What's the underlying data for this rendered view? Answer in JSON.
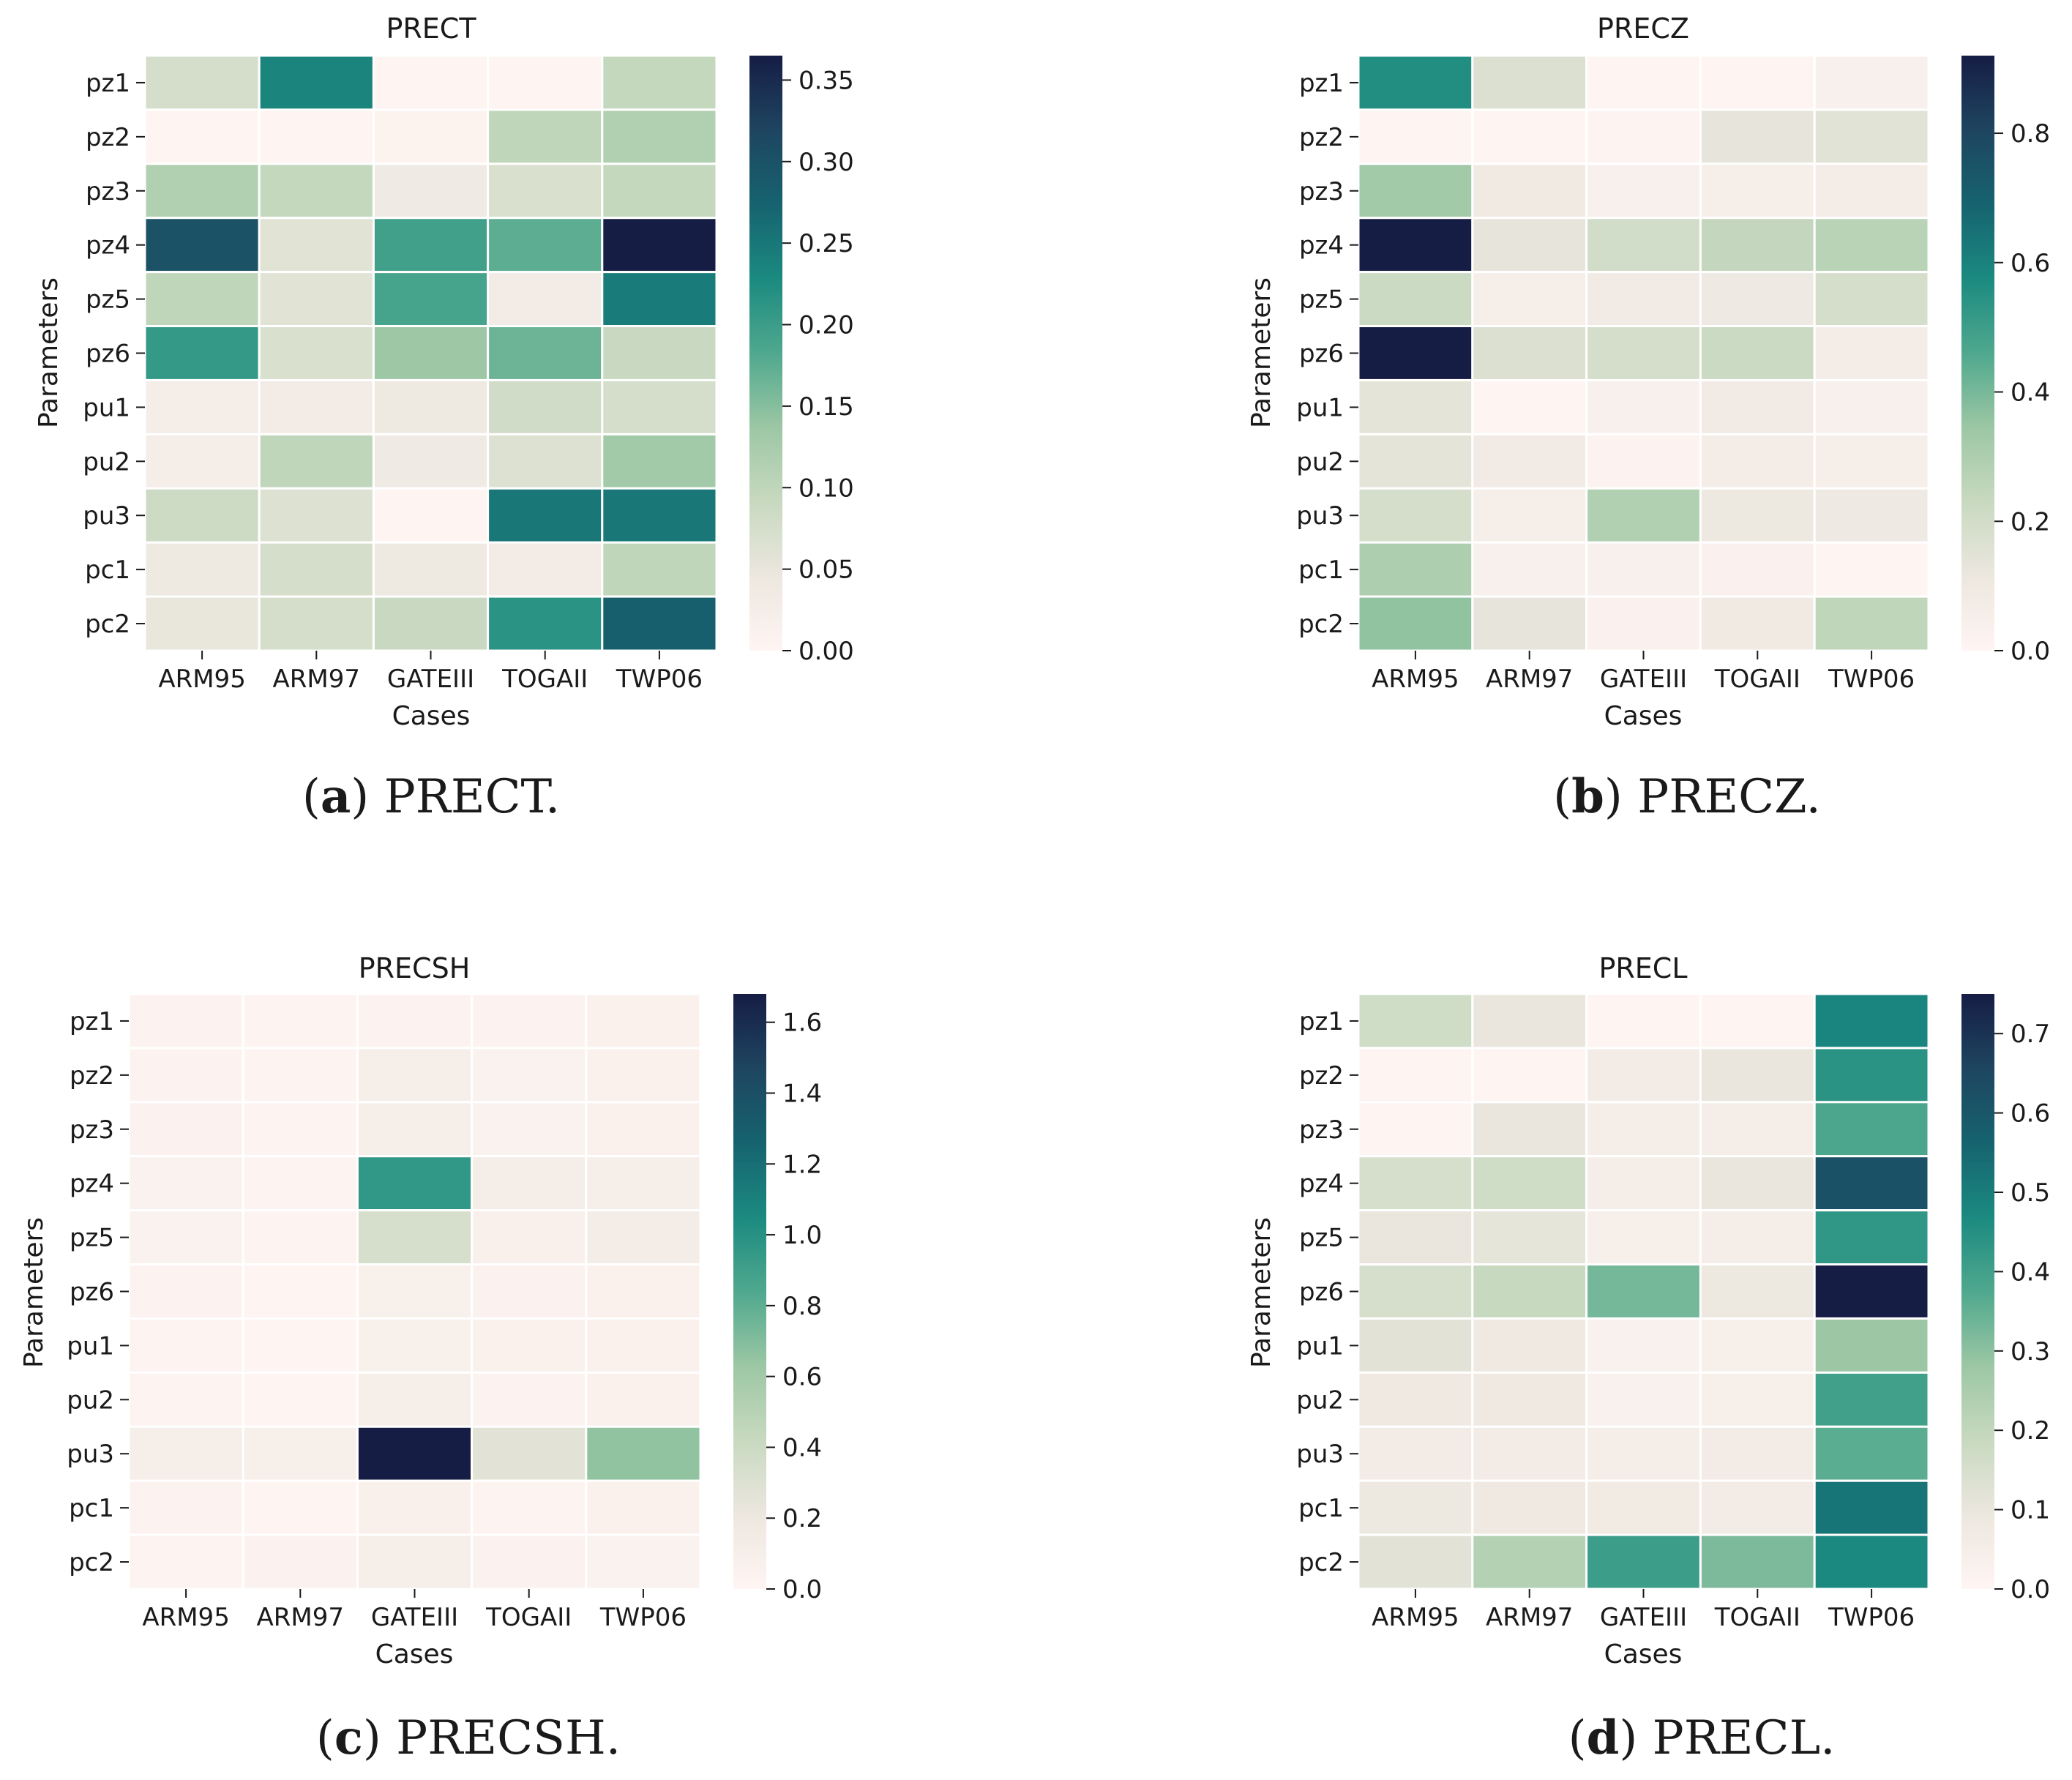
{
  "palette": [
    "#fff5f3",
    "#ece7df",
    "#c8d9c0",
    "#9cc7a4",
    "#4fa88e",
    "#1b8a80",
    "#16636f",
    "#1e4560",
    "#161d45"
  ],
  "chart_data": [
    {
      "type": "heatmap",
      "title": "PRECT",
      "caption_letter": "a",
      "caption_text": "PRECT.",
      "xlabel": "Cases",
      "ylabel": "Parameters",
      "categories_x": [
        "ARM95",
        "ARM97",
        "GATEIII",
        "TOGAII",
        "TWP06"
      ],
      "categories_y": [
        "pz1",
        "pz2",
        "pz3",
        "pz4",
        "pz5",
        "pz6",
        "pu1",
        "pu2",
        "pu3",
        "pc1",
        "pc2"
      ],
      "vmin": 0.0,
      "vmax": 0.365,
      "colorbar_ticks": [
        0.0,
        0.05,
        0.1,
        0.15,
        0.2,
        0.25,
        0.3,
        0.35
      ],
      "colorbar_tick_labels": [
        "0.00",
        "0.05",
        "0.10",
        "0.15",
        "0.20",
        "0.25",
        "0.30",
        "0.35"
      ],
      "values": [
        [
          0.075,
          0.235,
          0.002,
          0.002,
          0.095
        ],
        [
          0.002,
          0.002,
          0.008,
          0.1,
          0.115
        ],
        [
          0.115,
          0.095,
          0.035,
          0.07,
          0.095
        ],
        [
          0.3,
          0.06,
          0.195,
          0.175,
          0.365
        ],
        [
          0.1,
          0.06,
          0.19,
          0.03,
          0.245
        ],
        [
          0.205,
          0.07,
          0.135,
          0.165,
          0.09
        ],
        [
          0.025,
          0.03,
          0.04,
          0.08,
          0.075
        ],
        [
          0.025,
          0.1,
          0.035,
          0.065,
          0.13
        ],
        [
          0.085,
          0.065,
          0.002,
          0.25,
          0.25
        ],
        [
          0.04,
          0.075,
          0.04,
          0.03,
          0.1
        ],
        [
          0.05,
          0.075,
          0.09,
          0.215,
          0.28
        ]
      ]
    },
    {
      "type": "heatmap",
      "title": "PRECZ",
      "caption_letter": "b",
      "caption_text": "PRECZ.",
      "xlabel": "Cases",
      "ylabel": "Parameters",
      "categories_x": [
        "ARM95",
        "ARM97",
        "GATEIII",
        "TOGAII",
        "TWP06"
      ],
      "categories_y": [
        "pz1",
        "pz2",
        "pz3",
        "pz4",
        "pz5",
        "pz6",
        "pu1",
        "pu2",
        "pu3",
        "pc1",
        "pc2"
      ],
      "vmin": 0.0,
      "vmax": 0.92,
      "colorbar_ticks": [
        0.0,
        0.2,
        0.4,
        0.6,
        0.8
      ],
      "colorbar_tick_labels": [
        "0.0",
        "0.2",
        "0.4",
        "0.6",
        "0.8"
      ],
      "values": [
        [
          0.56,
          0.17,
          0.005,
          0.005,
          0.04
        ],
        [
          0.005,
          0.005,
          0.01,
          0.13,
          0.15
        ],
        [
          0.33,
          0.09,
          0.04,
          0.06,
          0.07
        ],
        [
          0.92,
          0.13,
          0.2,
          0.24,
          0.27
        ],
        [
          0.22,
          0.06,
          0.08,
          0.1,
          0.19
        ],
        [
          0.92,
          0.17,
          0.19,
          0.22,
          0.07
        ],
        [
          0.14,
          0.005,
          0.04,
          0.08,
          0.04
        ],
        [
          0.14,
          0.08,
          0.02,
          0.07,
          0.06
        ],
        [
          0.19,
          0.06,
          0.29,
          0.11,
          0.1
        ],
        [
          0.3,
          0.04,
          0.04,
          0.03,
          0.005
        ],
        [
          0.36,
          0.13,
          0.03,
          0.09,
          0.25
        ]
      ]
    },
    {
      "type": "heatmap",
      "title": "PRECSH",
      "caption_letter": "c",
      "caption_text": "PRECSH.",
      "xlabel": "Cases",
      "ylabel": "Parameters",
      "categories_x": [
        "ARM95",
        "ARM97",
        "GATEIII",
        "TOGAII",
        "TWP06"
      ],
      "categories_y": [
        "pz1",
        "pz2",
        "pz3",
        "pz4",
        "pz5",
        "pz6",
        "pu1",
        "pu2",
        "pu3",
        "pc1",
        "pc2"
      ],
      "vmin": 0.0,
      "vmax": 1.68,
      "colorbar_ticks": [
        0.0,
        0.2,
        0.4,
        0.6,
        0.8,
        1.0,
        1.2,
        1.4,
        1.6
      ],
      "colorbar_tick_labels": [
        "0.0",
        "0.2",
        "0.4",
        "0.6",
        "0.8",
        "1.0",
        "1.2",
        "1.4",
        "1.6"
      ],
      "values": [
        [
          0.03,
          0.02,
          0.03,
          0.03,
          0.06
        ],
        [
          0.03,
          0.02,
          0.11,
          0.05,
          0.06
        ],
        [
          0.04,
          0.02,
          0.11,
          0.05,
          0.06
        ],
        [
          0.05,
          0.02,
          0.96,
          0.12,
          0.11
        ],
        [
          0.05,
          0.02,
          0.34,
          0.07,
          0.13
        ],
        [
          0.03,
          0.01,
          0.08,
          0.04,
          0.06
        ],
        [
          0.02,
          0.01,
          0.08,
          0.06,
          0.06
        ],
        [
          0.02,
          0.01,
          0.1,
          0.03,
          0.06
        ],
        [
          0.11,
          0.09,
          1.68,
          0.27,
          0.66
        ],
        [
          0.03,
          0.01,
          0.07,
          0.02,
          0.06
        ],
        [
          0.02,
          0.04,
          0.11,
          0.04,
          0.05
        ]
      ]
    },
    {
      "type": "heatmap",
      "title": "PRECL",
      "caption_letter": "d",
      "caption_text": "PRECL.",
      "xlabel": "Cases",
      "ylabel": "Parameters",
      "categories_x": [
        "ARM95",
        "ARM97",
        "GATEIII",
        "TOGAII",
        "TWP06"
      ],
      "categories_y": [
        "pz1",
        "pz2",
        "pz3",
        "pz4",
        "pz5",
        "pz6",
        "pu1",
        "pu2",
        "pu3",
        "pc1",
        "pc2"
      ],
      "vmin": 0.0,
      "vmax": 0.75,
      "colorbar_ticks": [
        0.0,
        0.1,
        0.2,
        0.3,
        0.4,
        0.5,
        0.6,
        0.7
      ],
      "colorbar_tick_labels": [
        "0.0",
        "0.1",
        "0.2",
        "0.3",
        "0.4",
        "0.5",
        "0.6",
        "0.7"
      ],
      "values": [
        [
          0.17,
          0.1,
          0.005,
          0.005,
          0.48
        ],
        [
          0.005,
          0.005,
          0.06,
          0.1,
          0.44
        ],
        [
          0.005,
          0.1,
          0.05,
          0.05,
          0.38
        ],
        [
          0.15,
          0.17,
          0.05,
          0.1,
          0.62
        ],
        [
          0.1,
          0.11,
          0.04,
          0.05,
          0.43
        ],
        [
          0.15,
          0.19,
          0.33,
          0.09,
          0.75
        ],
        [
          0.12,
          0.08,
          0.03,
          0.04,
          0.28
        ],
        [
          0.08,
          0.08,
          0.03,
          0.04,
          0.4
        ],
        [
          0.06,
          0.06,
          0.05,
          0.06,
          0.36
        ],
        [
          0.09,
          0.08,
          0.07,
          0.06,
          0.52
        ],
        [
          0.12,
          0.23,
          0.41,
          0.32,
          0.47
        ]
      ]
    }
  ]
}
